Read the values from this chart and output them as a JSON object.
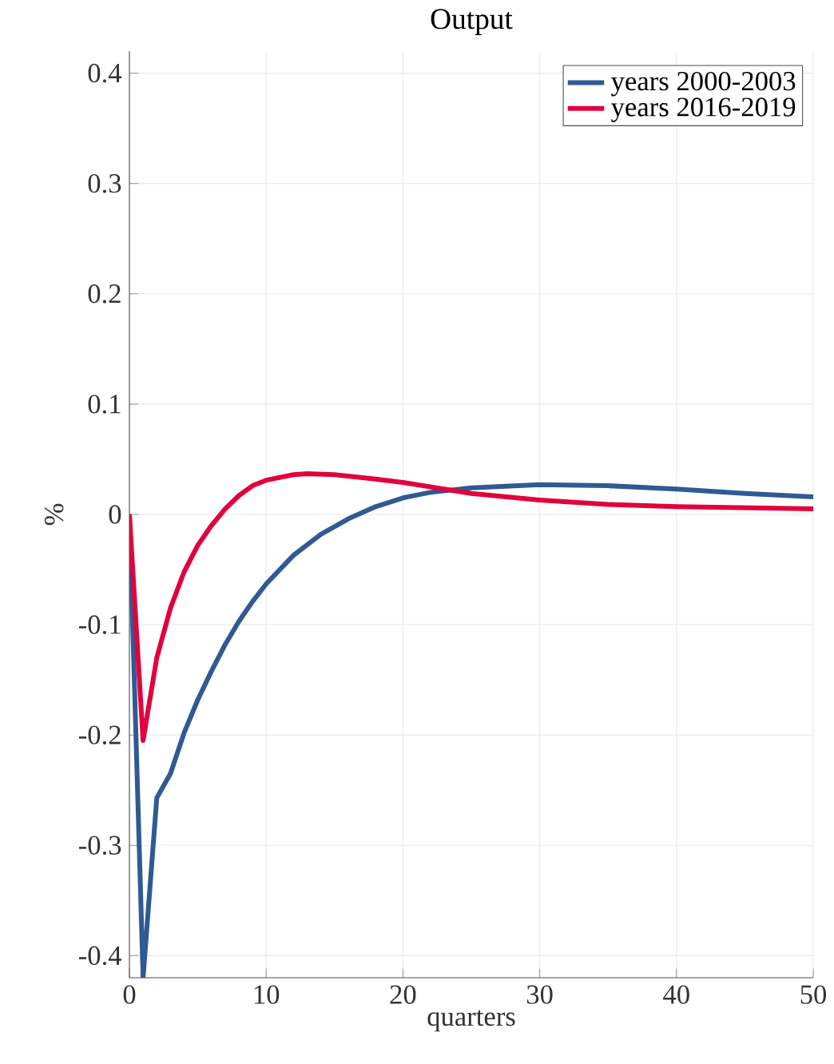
{
  "chart_data": {
    "type": "line",
    "title": "Output",
    "xlabel": "quarters",
    "ylabel": "%",
    "xlim": [
      0,
      50
    ],
    "ylim": [
      -0.42,
      0.42
    ],
    "xticks": [
      0,
      10,
      20,
      30,
      40,
      50
    ],
    "yticks": [
      -0.4,
      -0.3,
      -0.2,
      -0.1,
      0,
      0.1,
      0.2,
      0.3,
      0.4
    ],
    "grid": true,
    "legend": "top right",
    "marker": "none",
    "line_style": "solid",
    "series": [
      {
        "name": "years 2000-2003",
        "color": "#2f5a93",
        "x": [
          0,
          1,
          2,
          3,
          4,
          5,
          6,
          7,
          8,
          9,
          10,
          12,
          14,
          16,
          18,
          20,
          22,
          25,
          30,
          35,
          40,
          45,
          50
        ],
        "values": [
          0,
          -0.42,
          -0.257,
          -0.235,
          -0.198,
          -0.168,
          -0.142,
          -0.118,
          -0.097,
          -0.079,
          -0.063,
          -0.037,
          -0.018,
          -0.004,
          0.007,
          0.015,
          0.02,
          0.024,
          0.027,
          0.026,
          0.023,
          0.019,
          0.016
        ]
      },
      {
        "name": "years 2016-2019",
        "color": "#e2003d",
        "x": [
          0,
          1,
          2,
          3,
          4,
          5,
          6,
          7,
          8,
          9,
          10,
          12,
          13,
          15,
          18,
          20,
          23,
          25,
          30,
          35,
          40,
          45,
          50
        ],
        "values": [
          0,
          -0.205,
          -0.13,
          -0.085,
          -0.052,
          -0.028,
          -0.01,
          0.005,
          0.017,
          0.026,
          0.031,
          0.036,
          0.037,
          0.036,
          0.032,
          0.029,
          0.023,
          0.019,
          0.013,
          0.009,
          0.007,
          0.006,
          0.005
        ]
      }
    ]
  }
}
